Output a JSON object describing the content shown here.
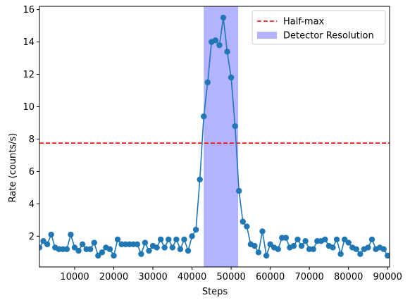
{
  "chart_data": {
    "type": "line",
    "xlabel": "Steps",
    "ylabel": "Rate (counts/s)",
    "xlim": [
      1000,
      90500
    ],
    "ylim": [
      0.1,
      16.2
    ],
    "xticks": [
      10000,
      20000,
      30000,
      40000,
      50000,
      60000,
      70000,
      80000,
      90000
    ],
    "xtick_labels": [
      "10000",
      "20000",
      "30000",
      "40000",
      "50000",
      "60000",
      "70000",
      "80000",
      "90000"
    ],
    "yticks": [
      2,
      4,
      6,
      8,
      10,
      12,
      14,
      16
    ],
    "ytick_labels": [
      "2",
      "4",
      "6",
      "8",
      "10",
      "12",
      "14",
      "16"
    ],
    "grid": false,
    "legend_position": "top-right",
    "series": [
      {
        "name": "",
        "color": "#1f77b4",
        "marker": "circle",
        "points": [
          [
            1000,
            1.3
          ],
          [
            2000,
            1.7
          ],
          [
            3000,
            1.5
          ],
          [
            4000,
            2.1
          ],
          [
            5000,
            1.3
          ],
          [
            6000,
            1.2
          ],
          [
            7000,
            1.2
          ],
          [
            8000,
            1.2
          ],
          [
            9000,
            2.1
          ],
          [
            10000,
            1.3
          ],
          [
            11000,
            1.1
          ],
          [
            12000,
            1.5
          ],
          [
            13000,
            1.2
          ],
          [
            14000,
            1.2
          ],
          [
            15000,
            1.6
          ],
          [
            16000,
            0.8
          ],
          [
            17000,
            1.0
          ],
          [
            18000,
            1.3
          ],
          [
            19000,
            1.2
          ],
          [
            20000,
            0.8
          ],
          [
            21000,
            1.8
          ],
          [
            22000,
            1.5
          ],
          [
            23000,
            1.5
          ],
          [
            24000,
            1.5
          ],
          [
            25000,
            1.5
          ],
          [
            26000,
            1.5
          ],
          [
            27000,
            0.9
          ],
          [
            28000,
            1.6
          ],
          [
            29000,
            1.1
          ],
          [
            30000,
            1.4
          ],
          [
            31000,
            1.3
          ],
          [
            32000,
            1.8
          ],
          [
            33000,
            1.3
          ],
          [
            34000,
            1.8
          ],
          [
            35000,
            1.3
          ],
          [
            36000,
            1.8
          ],
          [
            37000,
            1.2
          ],
          [
            38000,
            1.8
          ],
          [
            39000,
            1.1
          ],
          [
            40000,
            2.0
          ],
          [
            41000,
            2.4
          ],
          [
            42000,
            5.5
          ],
          [
            43000,
            9.4
          ],
          [
            44000,
            11.5
          ],
          [
            45000,
            14.0
          ],
          [
            46000,
            14.1
          ],
          [
            47000,
            13.8
          ],
          [
            48000,
            15.5
          ],
          [
            49000,
            13.4
          ],
          [
            50000,
            11.8
          ],
          [
            51000,
            8.8
          ],
          [
            52000,
            4.8
          ],
          [
            53000,
            2.9
          ],
          [
            54000,
            2.6
          ],
          [
            55000,
            1.5
          ],
          [
            56000,
            1.4
          ],
          [
            57000,
            1.0
          ],
          [
            58000,
            2.3
          ],
          [
            59000,
            0.8
          ],
          [
            60000,
            1.5
          ],
          [
            61000,
            1.3
          ],
          [
            62000,
            1.2
          ],
          [
            63000,
            1.9
          ],
          [
            64000,
            1.9
          ],
          [
            65000,
            1.3
          ],
          [
            66000,
            1.4
          ],
          [
            67000,
            1.8
          ],
          [
            68000,
            1.4
          ],
          [
            69000,
            1.7
          ],
          [
            70000,
            1.2
          ],
          [
            71000,
            1.2
          ],
          [
            72000,
            1.7
          ],
          [
            73000,
            1.7
          ],
          [
            74000,
            1.8
          ],
          [
            75000,
            1.4
          ],
          [
            76000,
            1.3
          ],
          [
            77000,
            1.8
          ],
          [
            78000,
            0.9
          ],
          [
            79000,
            1.8
          ],
          [
            80000,
            1.6
          ],
          [
            81000,
            1.3
          ],
          [
            82000,
            1.2
          ],
          [
            83000,
            0.9
          ],
          [
            84000,
            1.2
          ],
          [
            85000,
            1.3
          ],
          [
            86000,
            1.8
          ],
          [
            87000,
            1.2
          ],
          [
            88000,
            1.3
          ],
          [
            89000,
            1.2
          ],
          [
            90000,
            0.8
          ]
        ]
      }
    ],
    "half_max": {
      "label": "Half-max",
      "y": 7.75,
      "color": "#ff0000",
      "style": "dashed"
    },
    "resolution_band": {
      "label": "Detector Resolution",
      "x_start": 43000,
      "x_end": 51800,
      "color": "#b3b3ff"
    },
    "legend": [
      {
        "label": "Half-max",
        "kind": "dashed-line",
        "color": "#ff0000"
      },
      {
        "label": "Detector Resolution",
        "kind": "patch",
        "color": "#b3b3ff"
      }
    ]
  }
}
